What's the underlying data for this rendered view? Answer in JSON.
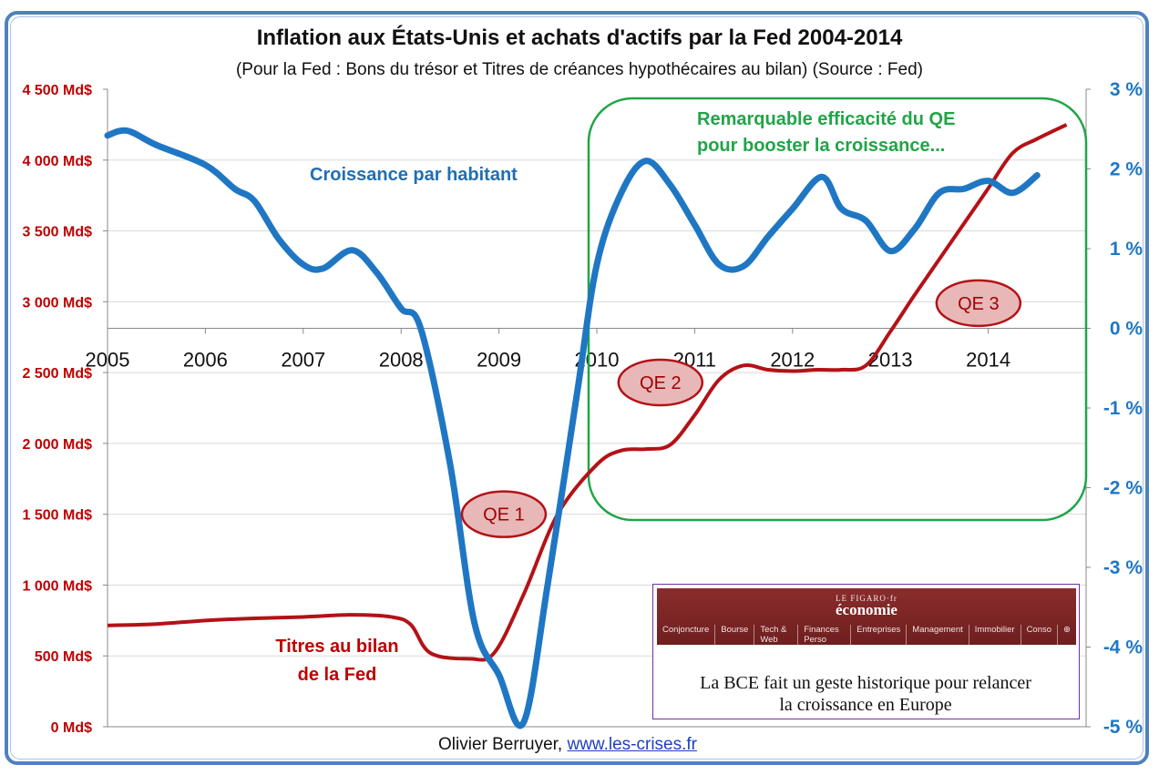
{
  "title": "Inflation aux États-Unis et achats d'actifs par la Fed 2004-2014",
  "subtitle": "(Pour la Fed : Bons du trésor et Titres de créances hypothécaires au bilan) (Source : Fed)",
  "annotations": {
    "growth_label": "Croissance par habitant",
    "qe_efficacy_line1": "Remarquable efficacité du QE",
    "qe_efficacy_line2": "pour booster la croissance...",
    "titres_line1": "Titres au bilan",
    "titres_line2": "de la Fed"
  },
  "credit": {
    "author": "Olivier Berruyer,",
    "link": "www.les-crises.fr"
  },
  "inset": {
    "brand": "LE FIGARO·fr",
    "section": "économie",
    "nav": [
      "Conjoncture",
      "Bourse",
      "Tech & Web",
      "Finances Perso",
      "Entreprises",
      "Management",
      "Immobilier",
      "Conso",
      "⊕"
    ],
    "headline_line1": "La BCE fait un geste historique pour relancer",
    "headline_line2": "la croissance en Europe"
  },
  "colors": {
    "growth": "#1f77c4",
    "balance": "#b31217",
    "left_axis": "#c00000",
    "right_axis": "#1f77c4",
    "qe_box": "#20a547",
    "qe_bubble_fill": "#e8b8b8",
    "qe_bubble_stroke": "#b31217",
    "grid": "#d9d9d9"
  },
  "chart_data": {
    "type": "line",
    "x_ticks": [
      2005,
      2006,
      2007,
      2008,
      2009,
      2010,
      2011,
      2012,
      2013,
      2014
    ],
    "x_range": [
      2005,
      2015
    ],
    "left_axis": {
      "ticks": [
        "4 500 Md$",
        "4 000 Md$",
        "3 500 Md$",
        "3 000 Md$",
        "2 500 Md$",
        "2 000 Md$",
        "1 500 Md$",
        "1 000 Md$",
        "500 Md$",
        "0 Md$"
      ],
      "range": [
        0,
        4500
      ]
    },
    "right_axis": {
      "ticks": [
        "3 %",
        "2 %",
        "1 %",
        "0 %",
        "-1 %",
        "-2 %",
        "-3 %",
        "-4 %",
        "-5 %"
      ],
      "range": [
        -5,
        3
      ]
    },
    "series": [
      {
        "axis": "right",
        "x": [
          2005.0,
          2005.2,
          2005.5,
          2006.0,
          2006.3,
          2006.5,
          2006.75,
          2007.0,
          2007.2,
          2007.5,
          2007.75,
          2008.0,
          2008.2,
          2008.5,
          2008.75,
          2009.0,
          2009.25,
          2009.5,
          2009.8,
          2010.0,
          2010.25,
          2010.5,
          2010.75,
          2011.0,
          2011.25,
          2011.5,
          2011.75,
          2012.0,
          2012.3,
          2012.5,
          2012.75,
          2013.0,
          2013.25,
          2013.5,
          2013.75,
          2014.0,
          2014.25,
          2014.5
        ],
        "values": [
          2.42,
          2.48,
          2.3,
          2.05,
          1.75,
          1.6,
          1.12,
          0.8,
          0.75,
          0.98,
          0.7,
          0.25,
          0.0,
          -1.7,
          -3.7,
          -4.35,
          -4.95,
          -3.2,
          -0.8,
          0.8,
          1.7,
          2.1,
          1.8,
          1.3,
          0.8,
          0.78,
          1.15,
          1.5,
          1.9,
          1.5,
          1.35,
          0.97,
          1.25,
          1.7,
          1.75,
          1.85,
          1.7,
          1.92
        ]
      },
      {
        "axis": "left",
        "x": [
          2005.0,
          2005.5,
          2006.0,
          2006.5,
          2007.0,
          2007.5,
          2007.9,
          2008.1,
          2008.3,
          2008.7,
          2008.95,
          2009.25,
          2009.6,
          2010.0,
          2010.25,
          2010.5,
          2010.75,
          2011.0,
          2011.25,
          2011.5,
          2011.75,
          2012.0,
          2012.25,
          2012.5,
          2012.75,
          2013.0,
          2013.25,
          2013.5,
          2013.75,
          2014.0,
          2014.25,
          2014.5,
          2014.8
        ],
        "values": [
          715,
          725,
          750,
          765,
          775,
          790,
          775,
          720,
          520,
          480,
          520,
          930,
          1500,
          1850,
          1950,
          1960,
          1990,
          2200,
          2450,
          2550,
          2520,
          2510,
          2520,
          2520,
          2550,
          2790,
          3050,
          3300,
          3550,
          3800,
          4050,
          4150,
          4250
        ]
      }
    ],
    "qe_labels": [
      {
        "label": "QE 1",
        "x": 2009.05,
        "y": 1500
      },
      {
        "label": "QE 2",
        "x": 2010.65,
        "y": 2430
      },
      {
        "label": "QE 3",
        "x": 2013.9,
        "y": 2990
      }
    ]
  }
}
